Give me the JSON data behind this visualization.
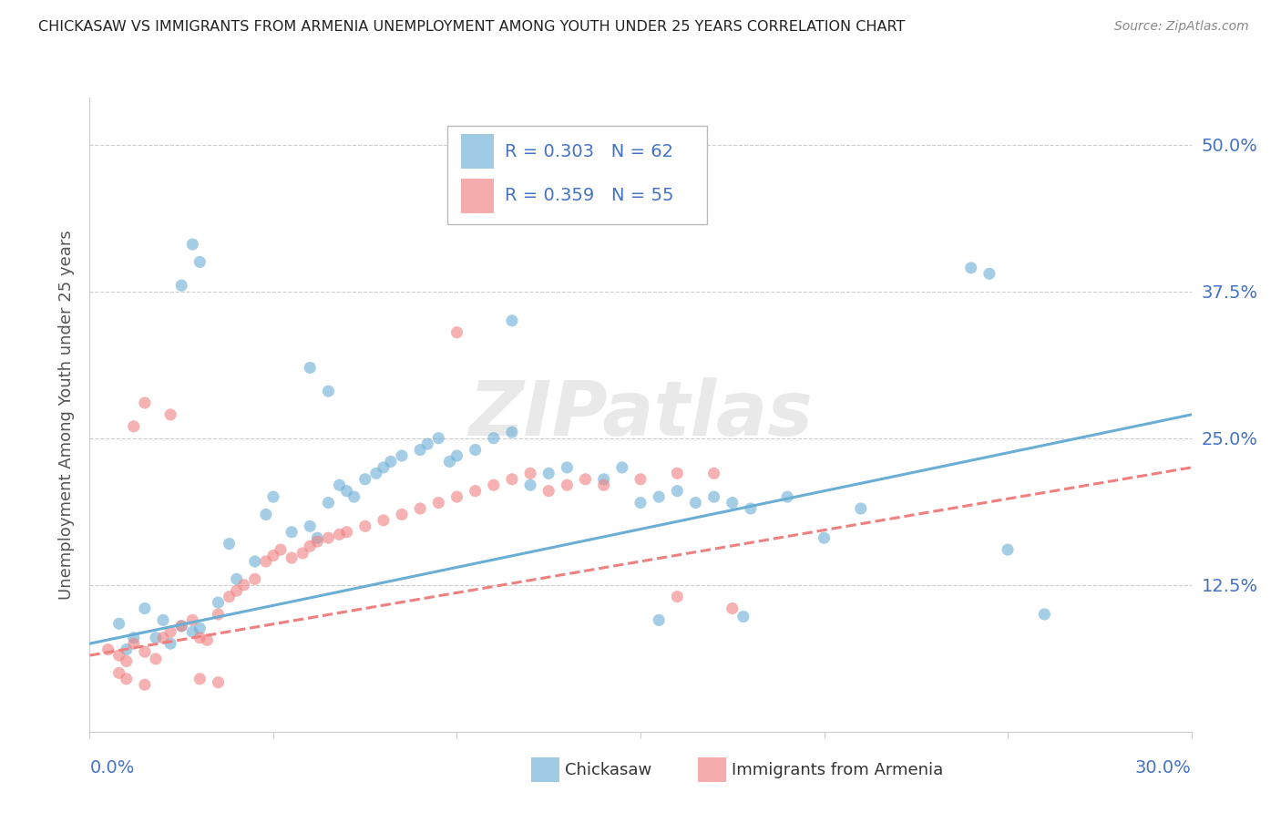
{
  "title": "CHICKASAW VS IMMIGRANTS FROM ARMENIA UNEMPLOYMENT AMONG YOUTH UNDER 25 YEARS CORRELATION CHART",
  "source": "Source: ZipAtlas.com",
  "ylabel": "Unemployment Among Youth under 25 years",
  "xlim": [
    0.0,
    0.3
  ],
  "ylim": [
    0.0,
    0.54
  ],
  "yticks": [
    0.0,
    0.125,
    0.25,
    0.375,
    0.5
  ],
  "ytick_labels": [
    "",
    "12.5%",
    "25.0%",
    "37.5%",
    "50.0%"
  ],
  "watermark": "ZIPatlas",
  "blue_color": "#6aaed6",
  "pink_color": "#f08080",
  "blue_scatter": [
    [
      0.02,
      0.095
    ],
    [
      0.025,
      0.09
    ],
    [
      0.028,
      0.085
    ],
    [
      0.018,
      0.08
    ],
    [
      0.015,
      0.105
    ],
    [
      0.022,
      0.075
    ],
    [
      0.01,
      0.07
    ],
    [
      0.012,
      0.08
    ],
    [
      0.008,
      0.092
    ],
    [
      0.03,
      0.088
    ],
    [
      0.035,
      0.11
    ],
    [
      0.04,
      0.13
    ],
    [
      0.038,
      0.16
    ],
    [
      0.045,
      0.145
    ],
    [
      0.05,
      0.2
    ],
    [
      0.048,
      0.185
    ],
    [
      0.055,
      0.17
    ],
    [
      0.06,
      0.175
    ],
    [
      0.062,
      0.165
    ],
    [
      0.065,
      0.195
    ],
    [
      0.068,
      0.21
    ],
    [
      0.07,
      0.205
    ],
    [
      0.072,
      0.2
    ],
    [
      0.075,
      0.215
    ],
    [
      0.078,
      0.22
    ],
    [
      0.08,
      0.225
    ],
    [
      0.082,
      0.23
    ],
    [
      0.085,
      0.235
    ],
    [
      0.09,
      0.24
    ],
    [
      0.092,
      0.245
    ],
    [
      0.095,
      0.25
    ],
    [
      0.098,
      0.23
    ],
    [
      0.1,
      0.235
    ],
    [
      0.105,
      0.24
    ],
    [
      0.11,
      0.25
    ],
    [
      0.115,
      0.255
    ],
    [
      0.12,
      0.21
    ],
    [
      0.125,
      0.22
    ],
    [
      0.13,
      0.225
    ],
    [
      0.14,
      0.215
    ],
    [
      0.145,
      0.225
    ],
    [
      0.15,
      0.195
    ],
    [
      0.155,
      0.2
    ],
    [
      0.16,
      0.205
    ],
    [
      0.165,
      0.195
    ],
    [
      0.17,
      0.2
    ],
    [
      0.175,
      0.195
    ],
    [
      0.18,
      0.19
    ],
    [
      0.19,
      0.2
    ],
    [
      0.2,
      0.165
    ],
    [
      0.21,
      0.19
    ],
    [
      0.025,
      0.38
    ],
    [
      0.028,
      0.415
    ],
    [
      0.03,
      0.4
    ],
    [
      0.24,
      0.395
    ],
    [
      0.245,
      0.39
    ],
    [
      0.25,
      0.155
    ],
    [
      0.26,
      0.1
    ],
    [
      0.06,
      0.31
    ],
    [
      0.065,
      0.29
    ],
    [
      0.115,
      0.35
    ],
    [
      0.155,
      0.095
    ],
    [
      0.178,
      0.098
    ]
  ],
  "pink_scatter": [
    [
      0.005,
      0.07
    ],
    [
      0.008,
      0.065
    ],
    [
      0.01,
      0.06
    ],
    [
      0.012,
      0.075
    ],
    [
      0.015,
      0.068
    ],
    [
      0.018,
      0.062
    ],
    [
      0.02,
      0.08
    ],
    [
      0.022,
      0.085
    ],
    [
      0.025,
      0.09
    ],
    [
      0.028,
      0.095
    ],
    [
      0.03,
      0.08
    ],
    [
      0.032,
      0.078
    ],
    [
      0.035,
      0.1
    ],
    [
      0.038,
      0.115
    ],
    [
      0.04,
      0.12
    ],
    [
      0.042,
      0.125
    ],
    [
      0.045,
      0.13
    ],
    [
      0.048,
      0.145
    ],
    [
      0.05,
      0.15
    ],
    [
      0.052,
      0.155
    ],
    [
      0.055,
      0.148
    ],
    [
      0.058,
      0.152
    ],
    [
      0.06,
      0.158
    ],
    [
      0.062,
      0.162
    ],
    [
      0.065,
      0.165
    ],
    [
      0.068,
      0.168
    ],
    [
      0.07,
      0.17
    ],
    [
      0.075,
      0.175
    ],
    [
      0.08,
      0.18
    ],
    [
      0.085,
      0.185
    ],
    [
      0.09,
      0.19
    ],
    [
      0.095,
      0.195
    ],
    [
      0.1,
      0.2
    ],
    [
      0.105,
      0.205
    ],
    [
      0.11,
      0.21
    ],
    [
      0.115,
      0.215
    ],
    [
      0.12,
      0.22
    ],
    [
      0.125,
      0.205
    ],
    [
      0.13,
      0.21
    ],
    [
      0.135,
      0.215
    ],
    [
      0.14,
      0.21
    ],
    [
      0.15,
      0.215
    ],
    [
      0.16,
      0.22
    ],
    [
      0.012,
      0.26
    ],
    [
      0.015,
      0.28
    ],
    [
      0.022,
      0.27
    ],
    [
      0.1,
      0.34
    ],
    [
      0.16,
      0.115
    ],
    [
      0.175,
      0.105
    ],
    [
      0.17,
      0.22
    ],
    [
      0.008,
      0.05
    ],
    [
      0.01,
      0.045
    ],
    [
      0.015,
      0.04
    ],
    [
      0.03,
      0.045
    ],
    [
      0.035,
      0.042
    ]
  ],
  "blue_line": {
    "x0": 0.0,
    "y0": 0.075,
    "x1": 0.3,
    "y1": 0.27
  },
  "pink_line": {
    "x0": 0.0,
    "y0": 0.065,
    "x1": 0.3,
    "y1": 0.225
  },
  "background_color": "#ffffff",
  "grid_color": "#cccccc",
  "title_color": "#222222",
  "axis_label_color": "#555555",
  "tick_color": "#4472c4"
}
